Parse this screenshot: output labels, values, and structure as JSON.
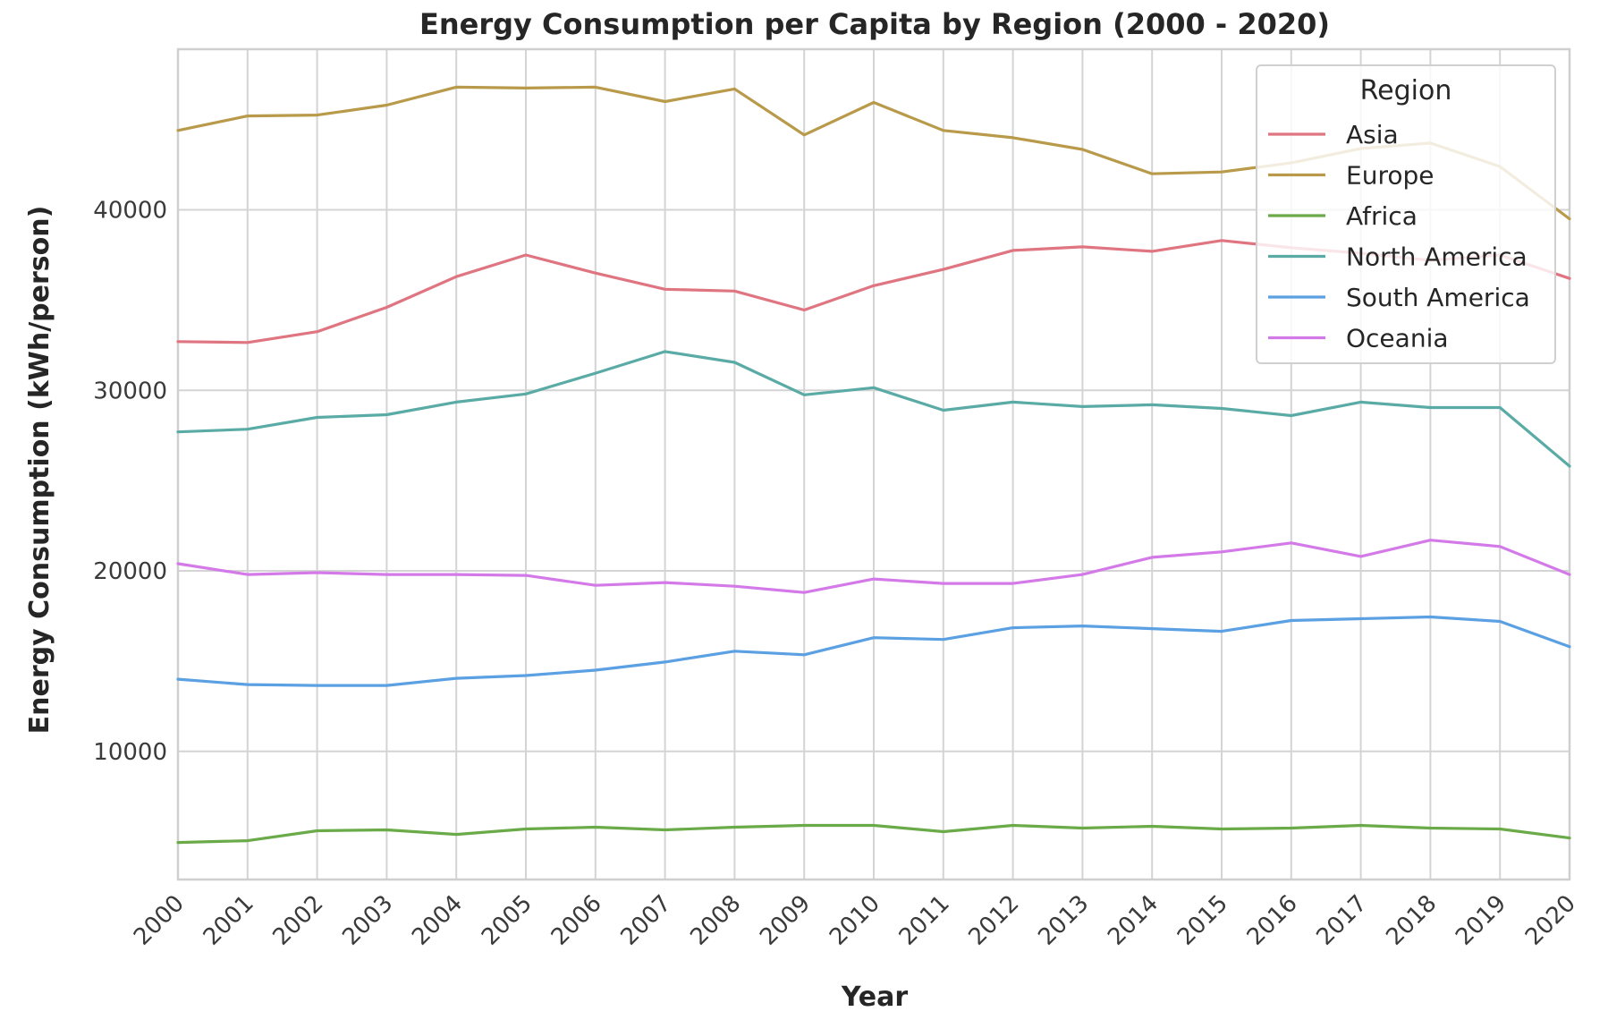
{
  "chart_data": {
    "type": "line",
    "title": "Energy Consumption per Capita by Region (2000 - 2020)",
    "xlabel": "Year",
    "ylabel": "Energy Consumption (kWh/person)",
    "x": [
      2000,
      2001,
      2002,
      2003,
      2004,
      2005,
      2006,
      2007,
      2008,
      2009,
      2010,
      2011,
      2012,
      2013,
      2014,
      2015,
      2016,
      2017,
      2018,
      2019,
      2020
    ],
    "x_tick_labels": [
      "2000",
      "2001",
      "2002",
      "2003",
      "2004",
      "2005",
      "2006",
      "2007",
      "2008",
      "2009",
      "2010",
      "2011",
      "2012",
      "2013",
      "2014",
      "2015",
      "2016",
      "2017",
      "2018",
      "2019",
      "2020"
    ],
    "y_ticks": [
      10000,
      20000,
      30000,
      40000
    ],
    "y_tick_labels": [
      "10000",
      "20000",
      "30000",
      "40000"
    ],
    "xlim": [
      2000,
      2020
    ],
    "ylim": [
      2900,
      48900
    ],
    "grid": true,
    "legend": {
      "title": "Region",
      "placement": "top-right"
    },
    "series": [
      {
        "name": "Asia",
        "color": "#e07582",
        "values": [
          32700,
          32650,
          33250,
          34600,
          36300,
          37500,
          36500,
          35600,
          35500,
          34450,
          35800,
          36700,
          37750,
          37950,
          37700,
          38300,
          37900,
          37600,
          37200,
          37500,
          36200
        ]
      },
      {
        "name": "Europe",
        "color": "#b89a4a",
        "values": [
          44400,
          45200,
          45250,
          45800,
          46800,
          46750,
          46800,
          46000,
          46700,
          44150,
          45950,
          44400,
          44000,
          43350,
          42000,
          42100,
          42600,
          43400,
          43700,
          42400,
          39500
        ]
      },
      {
        "name": "Africa",
        "color": "#6aaa48",
        "values": [
          4950,
          5050,
          5600,
          5650,
          5400,
          5700,
          5800,
          5650,
          5800,
          5900,
          5900,
          5550,
          5900,
          5750,
          5850,
          5700,
          5750,
          5900,
          5750,
          5700,
          5200
        ]
      },
      {
        "name": "North America",
        "color": "#5aaba5",
        "values": [
          27700,
          27850,
          28500,
          28650,
          29350,
          29800,
          30950,
          32150,
          31550,
          29750,
          30150,
          28900,
          29350,
          29100,
          29200,
          29000,
          28600,
          29350,
          29050,
          29050,
          25800
        ]
      },
      {
        "name": "South America",
        "color": "#5aa0e2",
        "values": [
          14000,
          13700,
          13650,
          13650,
          14050,
          14200,
          14500,
          14950,
          15550,
          15350,
          16300,
          16200,
          16850,
          16950,
          16800,
          16650,
          17250,
          17350,
          17450,
          17200,
          15800
        ]
      },
      {
        "name": "Oceania",
        "color": "#d47ae8",
        "values": [
          20400,
          19800,
          19900,
          19800,
          19800,
          19750,
          19200,
          19350,
          19150,
          18800,
          19550,
          19300,
          19300,
          19800,
          20750,
          21050,
          21550,
          20800,
          21700,
          21350,
          19800
        ]
      }
    ]
  }
}
